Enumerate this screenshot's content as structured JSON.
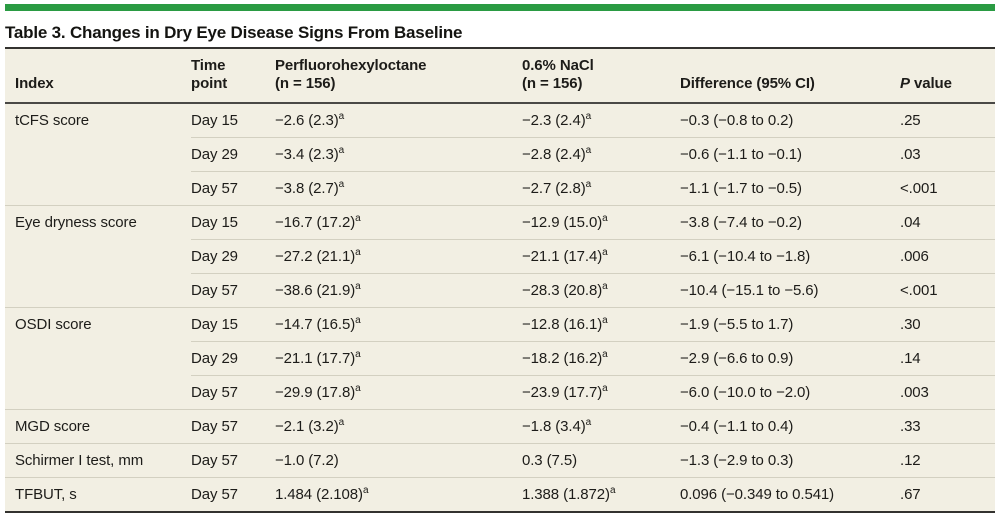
{
  "title": "Table 3. Changes in Dry Eye Disease Signs From Baseline",
  "colors": {
    "accent_green": "#2a9b43",
    "table_background": "#f2efe3",
    "rule_dark": "#33322f",
    "rule_light": "#d3d0c1"
  },
  "table": {
    "headers": [
      {
        "key": "index",
        "lines": [
          "Index"
        ]
      },
      {
        "key": "time",
        "lines": [
          "Time",
          "point"
        ]
      },
      {
        "key": "pfh",
        "lines": [
          "Perfluorohexyloctane",
          "(n = 156)"
        ]
      },
      {
        "key": "nacl",
        "lines": [
          "0.6% NaCl",
          "(n = 156)"
        ]
      },
      {
        "key": "diff",
        "lines": [
          "Difference (95% CI)"
        ]
      },
      {
        "key": "p",
        "lines": [
          "P value"
        ],
        "italic_first": true
      }
    ],
    "groups": [
      {
        "index": "tCFS score",
        "rows": [
          {
            "time": "Day 15",
            "pfh": "−2.6 (2.3)^a",
            "nacl": "−2.3 (2.4)^a",
            "diff": "−0.3 (−0.8 to 0.2)",
            "p": ".25"
          },
          {
            "time": "Day 29",
            "pfh": "−3.4 (2.3)^a",
            "nacl": "−2.8 (2.4)^a",
            "diff": "−0.6 (−1.1 to −0.1)",
            "p": ".03"
          },
          {
            "time": "Day 57",
            "pfh": "−3.8 (2.7)^a",
            "nacl": "−2.7 (2.8)^a",
            "diff": "−1.1 (−1.7 to −0.5)",
            "p": "<.001"
          }
        ]
      },
      {
        "index": "Eye dryness score",
        "rows": [
          {
            "time": "Day 15",
            "pfh": "−16.7 (17.2)^a",
            "nacl": "−12.9 (15.0)^a",
            "diff": "−3.8 (−7.4 to −0.2)",
            "p": ".04"
          },
          {
            "time": "Day 29",
            "pfh": "−27.2 (21.1)^a",
            "nacl": "−21.1 (17.4)^a",
            "diff": "−6.1 (−10.4 to −1.8)",
            "p": ".006"
          },
          {
            "time": "Day 57",
            "pfh": "−38.6 (21.9)^a",
            "nacl": "−28.3 (20.8)^a",
            "diff": "−10.4 (−15.1 to −5.6)",
            "p": "<.001"
          }
        ]
      },
      {
        "index": "OSDI score",
        "rows": [
          {
            "time": "Day 15",
            "pfh": "−14.7 (16.5)^a",
            "nacl": "−12.8 (16.1)^a",
            "diff": "−1.9 (−5.5 to 1.7)",
            "p": ".30"
          },
          {
            "time": "Day 29",
            "pfh": "−21.1 (17.7)^a",
            "nacl": "−18.2 (16.2)^a",
            "diff": "−2.9 (−6.6 to 0.9)",
            "p": ".14"
          },
          {
            "time": "Day 57",
            "pfh": "−29.9 (17.8)^a",
            "nacl": "−23.9 (17.7)^a",
            "diff": "−6.0 (−10.0 to −2.0)",
            "p": ".003"
          }
        ]
      },
      {
        "index": "MGD score",
        "rows": [
          {
            "time": "Day 57",
            "pfh": "−2.1 (3.2)^a",
            "nacl": "−1.8 (3.4)^a",
            "diff": "−0.4 (−1.1 to 0.4)",
            "p": ".33"
          }
        ]
      },
      {
        "index": "Schirmer I test, mm",
        "rows": [
          {
            "time": "Day 57",
            "pfh": "−1.0 (7.2)",
            "nacl": "0.3 (7.5)",
            "diff": "−1.3 (−2.9 to 0.3)",
            "p": ".12"
          }
        ]
      },
      {
        "index": "TFBUT, s",
        "rows": [
          {
            "time": "Day 57",
            "pfh": "1.484 (2.108)^a",
            "nacl": "1.388 (1.872)^a",
            "diff": "0.096 (−0.349 to 0.541)",
            "p": ".67"
          }
        ]
      }
    ]
  }
}
